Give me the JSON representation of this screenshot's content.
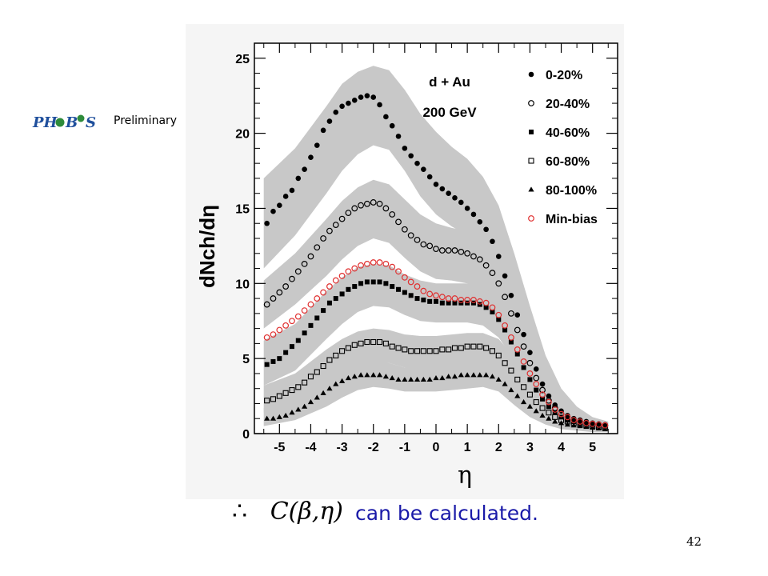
{
  "slide": {
    "preliminary_label": "Preliminary",
    "logo_name": "phobos-logo",
    "formula_therefore": "∴",
    "formula_expression": "C(β,η)",
    "caption": "can be calculated.",
    "page_number": "42"
  },
  "chart_data": {
    "type": "scatter",
    "title": "",
    "annotation_lines": [
      "d + Au",
      "200 GeV"
    ],
    "xlabel": "η",
    "ylabel": "dNch/dη",
    "xlim": [
      -5.8,
      5.8
    ],
    "ylim": [
      0,
      26
    ],
    "xticks": [
      -5,
      -4,
      -3,
      -2,
      -1,
      0,
      1,
      2,
      3,
      4,
      5
    ],
    "yticks": [
      0,
      5,
      10,
      15,
      20,
      25
    ],
    "grid": false,
    "legend_position": "top-right",
    "x": [
      -5.4,
      -5.2,
      -5.0,
      -4.8,
      -4.6,
      -4.4,
      -4.2,
      -4.0,
      -3.8,
      -3.6,
      -3.4,
      -3.2,
      -3.0,
      -2.8,
      -2.6,
      -2.4,
      -2.2,
      -2.0,
      -1.8,
      -1.6,
      -1.4,
      -1.2,
      -1.0,
      -0.8,
      -0.6,
      -0.4,
      -0.2,
      0.0,
      0.2,
      0.4,
      0.6,
      0.8,
      1.0,
      1.2,
      1.4,
      1.6,
      1.8,
      2.0,
      2.2,
      2.4,
      2.6,
      2.8,
      3.0,
      3.2,
      3.4,
      3.6,
      3.8,
      4.0,
      4.2,
      4.4,
      4.6,
      4.8,
      5.0,
      5.2,
      5.4
    ],
    "series": [
      {
        "name": "0-20%",
        "marker": "filled-circle",
        "color": "#000000",
        "values": [
          14.0,
          14.8,
          15.2,
          15.8,
          16.2,
          17.0,
          17.6,
          18.4,
          19.2,
          20.2,
          20.8,
          21.4,
          21.8,
          22.0,
          22.2,
          22.4,
          22.5,
          22.4,
          21.9,
          21.1,
          20.5,
          19.8,
          19.0,
          18.5,
          18.0,
          17.6,
          17.1,
          16.6,
          16.3,
          16.0,
          15.7,
          15.4,
          15.0,
          14.6,
          14.1,
          13.6,
          12.8,
          11.8,
          10.5,
          9.2,
          7.9,
          6.6,
          5.4,
          4.3,
          3.3,
          2.5,
          1.9,
          1.5,
          1.2,
          1.0,
          0.9,
          0.8,
          0.7,
          0.65,
          0.6
        ]
      },
      {
        "name": "20-40%",
        "marker": "open-circle",
        "color": "#000000",
        "values": [
          8.6,
          9.0,
          9.4,
          9.8,
          10.3,
          10.8,
          11.3,
          11.8,
          12.4,
          13.0,
          13.5,
          13.9,
          14.3,
          14.7,
          15.0,
          15.2,
          15.3,
          15.4,
          15.3,
          15.0,
          14.6,
          14.1,
          13.6,
          13.2,
          12.9,
          12.6,
          12.5,
          12.3,
          12.2,
          12.2,
          12.2,
          12.1,
          12.0,
          11.8,
          11.6,
          11.2,
          10.7,
          10.0,
          9.1,
          8.0,
          6.9,
          5.8,
          4.7,
          3.7,
          2.9,
          2.2,
          1.7,
          1.3,
          1.1,
          0.9,
          0.8,
          0.7,
          0.65,
          0.6,
          0.55
        ]
      },
      {
        "name": "40-60%",
        "marker": "filled-square",
        "color": "#000000",
        "values": [
          4.6,
          4.8,
          5.0,
          5.4,
          5.8,
          6.2,
          6.7,
          7.2,
          7.7,
          8.2,
          8.7,
          9.0,
          9.3,
          9.6,
          9.8,
          10.0,
          10.1,
          10.1,
          10.1,
          10.0,
          9.8,
          9.6,
          9.4,
          9.2,
          9.0,
          8.9,
          8.8,
          8.8,
          8.7,
          8.7,
          8.7,
          8.7,
          8.7,
          8.7,
          8.6,
          8.4,
          8.1,
          7.6,
          6.9,
          6.1,
          5.3,
          4.4,
          3.6,
          2.9,
          2.3,
          1.8,
          1.4,
          1.1,
          0.9,
          0.8,
          0.7,
          0.65,
          0.6,
          0.55,
          0.5
        ]
      },
      {
        "name": "60-80%",
        "marker": "open-square",
        "color": "#000000",
        "values": [
          2.2,
          2.3,
          2.5,
          2.7,
          2.9,
          3.1,
          3.4,
          3.8,
          4.1,
          4.5,
          4.9,
          5.2,
          5.5,
          5.7,
          5.9,
          6.0,
          6.1,
          6.1,
          6.1,
          6.0,
          5.8,
          5.7,
          5.6,
          5.5,
          5.5,
          5.5,
          5.5,
          5.5,
          5.6,
          5.6,
          5.7,
          5.7,
          5.8,
          5.8,
          5.8,
          5.7,
          5.5,
          5.2,
          4.7,
          4.2,
          3.6,
          3.1,
          2.6,
          2.1,
          1.7,
          1.4,
          1.1,
          0.9,
          0.8,
          0.7,
          0.6,
          0.55,
          0.5,
          0.45,
          0.4
        ]
      },
      {
        "name": "80-100%",
        "marker": "filled-triangle",
        "color": "#000000",
        "values": [
          1.0,
          1.0,
          1.1,
          1.2,
          1.4,
          1.6,
          1.8,
          2.1,
          2.4,
          2.7,
          3.0,
          3.3,
          3.5,
          3.7,
          3.8,
          3.9,
          3.9,
          3.9,
          3.9,
          3.8,
          3.7,
          3.6,
          3.6,
          3.6,
          3.6,
          3.6,
          3.6,
          3.7,
          3.7,
          3.8,
          3.8,
          3.9,
          3.9,
          3.9,
          3.9,
          3.9,
          3.8,
          3.6,
          3.3,
          2.9,
          2.5,
          2.1,
          1.8,
          1.5,
          1.2,
          1.0,
          0.8,
          0.7,
          0.6,
          0.55,
          0.5,
          0.45,
          0.4,
          0.35,
          0.3
        ]
      },
      {
        "name": "Min-bias",
        "marker": "open-circle",
        "color": "#e03030",
        "values": [
          6.4,
          6.6,
          6.9,
          7.2,
          7.5,
          7.8,
          8.2,
          8.6,
          9.0,
          9.4,
          9.8,
          10.2,
          10.5,
          10.8,
          11.0,
          11.2,
          11.3,
          11.4,
          11.4,
          11.3,
          11.1,
          10.8,
          10.4,
          10.1,
          9.8,
          9.5,
          9.3,
          9.2,
          9.1,
          9.0,
          9.0,
          8.9,
          8.9,
          8.9,
          8.8,
          8.7,
          8.4,
          7.9,
          7.2,
          6.4,
          5.6,
          4.8,
          4.0,
          3.3,
          2.6,
          2.1,
          1.6,
          1.3,
          1.1,
          0.9,
          0.8,
          0.7,
          0.65,
          0.6,
          0.55
        ]
      }
    ],
    "bands": [
      {
        "for": "0-20%",
        "x": [
          -5.5,
          -4.5,
          -3.5,
          -3.0,
          -2.5,
          -2.0,
          -1.5,
          -1.0,
          -0.5,
          0.0,
          0.5,
          1.0,
          1.5,
          2.0,
          2.5,
          3.0,
          3.5,
          4.0,
          4.5,
          5.0,
          5.5
        ],
        "upper": [
          17.0,
          19.0,
          21.8,
          23.3,
          24.1,
          24.5,
          24.2,
          22.9,
          21.3,
          20.1,
          19.1,
          18.3,
          17.1,
          15.2,
          12.0,
          8.5,
          5.2,
          3.0,
          1.8,
          1.1,
          0.8
        ],
        "lower": [
          11.0,
          13.2,
          16.0,
          17.5,
          18.6,
          19.2,
          18.9,
          17.5,
          15.8,
          14.6,
          13.8,
          13.2,
          12.2,
          10.4,
          7.8,
          5.0,
          2.8,
          1.4,
          0.8,
          0.5,
          0.3
        ]
      },
      {
        "for": "20-40%",
        "x": [
          -5.5,
          -4.5,
          -3.5,
          -3.0,
          -2.5,
          -2.0,
          -1.5,
          -1.0,
          -0.5,
          0.0,
          0.5,
          1.0,
          1.5,
          2.0,
          2.5,
          3.0,
          3.5,
          4.0,
          4.5,
          5.0,
          5.5
        ],
        "upper": [
          10.2,
          12.0,
          14.3,
          15.5,
          16.4,
          16.9,
          16.6,
          15.6,
          14.6,
          14.0,
          13.7,
          13.5,
          13.0,
          11.6,
          9.1,
          6.4,
          3.9,
          2.2,
          1.3,
          0.9,
          0.7
        ],
        "lower": [
          7.0,
          8.6,
          10.5,
          11.6,
          12.5,
          13.0,
          12.7,
          11.7,
          10.8,
          10.3,
          10.2,
          10.0,
          9.6,
          8.3,
          6.4,
          4.1,
          2.3,
          1.1,
          0.6,
          0.4,
          0.3
        ]
      },
      {
        "for": "40-60%",
        "x": [
          -5.5,
          -4.5,
          -3.5,
          -3.0,
          -2.5,
          -2.0,
          -1.5,
          -1.0,
          -0.5,
          0.0,
          0.5,
          1.0,
          1.5,
          2.0,
          2.5,
          3.0,
          3.5,
          4.0,
          4.5,
          5.0,
          5.5
        ],
        "upper": [
          6.2,
          7.3,
          9.5,
          10.4,
          11.1,
          11.3,
          11.2,
          10.6,
          10.2,
          10.0,
          10.0,
          10.0,
          9.8,
          9.0,
          7.3,
          5.1,
          3.1,
          1.9,
          1.2,
          0.8,
          0.6
        ],
        "lower": [
          3.2,
          4.2,
          6.3,
          7.3,
          8.1,
          8.5,
          8.4,
          7.9,
          7.5,
          7.4,
          7.4,
          7.4,
          7.2,
          6.4,
          4.9,
          3.1,
          1.6,
          0.8,
          0.4,
          0.3,
          0.2
        ]
      },
      {
        "for": "60-80%",
        "x": [
          -5.5,
          -4.5,
          -3.5,
          -3.0,
          -2.5,
          -2.0,
          -1.5,
          -1.0,
          -0.5,
          0.0,
          0.5,
          1.0,
          1.5,
          2.0,
          2.5,
          3.0,
          3.5,
          4.0,
          4.5,
          5.0,
          5.5
        ],
        "upper": [
          3.2,
          4.0,
          5.6,
          6.3,
          6.8,
          7.0,
          6.9,
          6.6,
          6.5,
          6.5,
          6.6,
          6.7,
          6.7,
          6.3,
          5.1,
          3.6,
          2.3,
          1.4,
          0.9,
          0.6,
          0.5
        ],
        "lower": [
          1.4,
          2.0,
          3.2,
          3.9,
          4.4,
          4.7,
          4.7,
          4.4,
          4.3,
          4.3,
          4.4,
          4.5,
          4.6,
          4.1,
          3.0,
          1.9,
          1.0,
          0.5,
          0.3,
          0.2,
          0.15
        ]
      },
      {
        "for": "80-100%",
        "x": [
          -5.5,
          -4.5,
          -3.5,
          -3.0,
          -2.5,
          -2.0,
          -1.5,
          -1.0,
          -0.5,
          0.0,
          0.5,
          1.0,
          1.5,
          2.0,
          2.5,
          3.0,
          3.5,
          4.0,
          4.5,
          5.0,
          5.5
        ],
        "upper": [
          1.7,
          2.3,
          3.6,
          4.2,
          4.6,
          4.8,
          4.7,
          4.4,
          4.4,
          4.4,
          4.5,
          4.6,
          4.7,
          4.5,
          3.6,
          2.5,
          1.6,
          1.0,
          0.7,
          0.5,
          0.4
        ],
        "lower": [
          0.5,
          0.9,
          1.8,
          2.4,
          2.9,
          3.1,
          3.0,
          2.8,
          2.8,
          2.8,
          2.9,
          3.0,
          3.1,
          2.8,
          1.9,
          1.1,
          0.6,
          0.3,
          0.2,
          0.1,
          0.1
        ]
      }
    ]
  }
}
